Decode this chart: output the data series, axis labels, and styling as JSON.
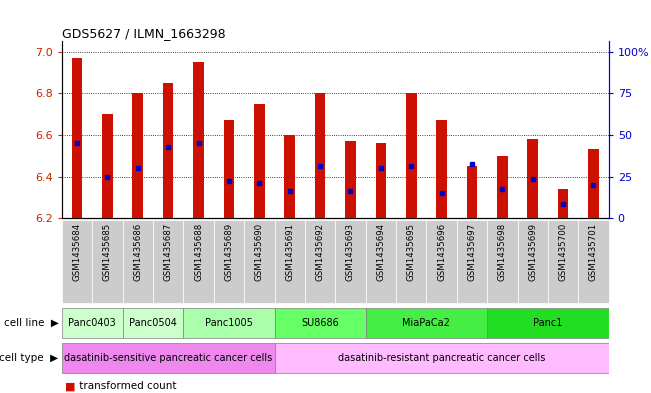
{
  "title": "GDS5627 / ILMN_1663298",
  "samples": [
    "GSM1435684",
    "GSM1435685",
    "GSM1435686",
    "GSM1435687",
    "GSM1435688",
    "GSM1435689",
    "GSM1435690",
    "GSM1435691",
    "GSM1435692",
    "GSM1435693",
    "GSM1435694",
    "GSM1435695",
    "GSM1435696",
    "GSM1435697",
    "GSM1435698",
    "GSM1435699",
    "GSM1435700",
    "GSM1435701"
  ],
  "bar_values": [
    6.97,
    6.7,
    6.8,
    6.85,
    6.95,
    6.67,
    6.75,
    6.6,
    6.8,
    6.57,
    6.56,
    6.8,
    6.67,
    6.45,
    6.5,
    6.58,
    6.34,
    6.53
  ],
  "percentile_values": [
    6.56,
    6.4,
    6.44,
    6.54,
    6.56,
    6.38,
    6.37,
    6.33,
    6.45,
    6.33,
    6.44,
    6.45,
    6.32,
    6.46,
    6.34,
    6.39,
    6.27,
    6.36
  ],
  "ylim_left": [
    6.2,
    7.05
  ],
  "ylim_right": [
    0,
    106.25
  ],
  "left_ticks": [
    6.2,
    6.4,
    6.6,
    6.8,
    7.0
  ],
  "right_ticks": [
    0,
    25,
    50,
    75,
    100
  ],
  "right_tick_labels": [
    "0",
    "25",
    "50",
    "75",
    "100%"
  ],
  "cell_line_groups": [
    {
      "label": "Panc0403",
      "cols": [
        0,
        1
      ],
      "color": "#ccffcc"
    },
    {
      "label": "Panc0504",
      "cols": [
        2,
        3
      ],
      "color": "#ccffcc"
    },
    {
      "label": "Panc1005",
      "cols": [
        4,
        5,
        6
      ],
      "color": "#aaffaa"
    },
    {
      "label": "SU8686",
      "cols": [
        7,
        8,
        9
      ],
      "color": "#66ff66"
    },
    {
      "label": "MiaPaCa2",
      "cols": [
        10,
        11,
        12,
        13
      ],
      "color": "#44ee44"
    },
    {
      "label": "Panc1",
      "cols": [
        14,
        15,
        16,
        17
      ],
      "color": "#22dd22"
    }
  ],
  "cell_type_groups": [
    {
      "label": "dasatinib-sensitive pancreatic cancer cells",
      "cols": [
        0,
        1,
        2,
        3,
        4,
        5,
        6
      ],
      "color": "#ee88ee"
    },
    {
      "label": "dasatinib-resistant pancreatic cancer cells",
      "cols": [
        7,
        8,
        9,
        10,
        11,
        12,
        13,
        14,
        15,
        16,
        17
      ],
      "color": "#ffbbff"
    }
  ],
  "bar_color": "#cc1100",
  "percentile_color": "#0000cc",
  "axis_color_left": "#cc2200",
  "axis_color_right": "#0000cc",
  "background_color": "#ffffff",
  "bar_width": 0.35,
  "label_box_color": "#cccccc"
}
